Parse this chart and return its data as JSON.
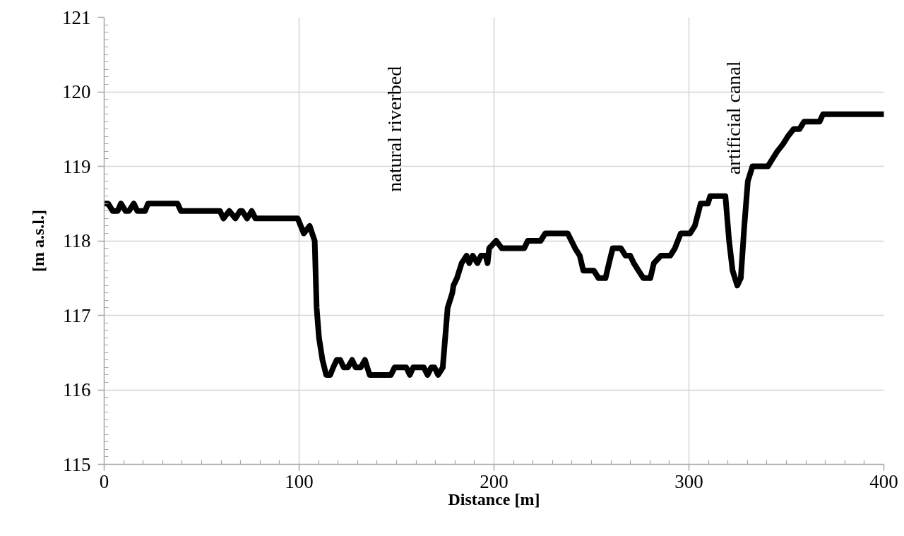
{
  "chart_data": {
    "type": "line",
    "xlabel": "Distance [m]",
    "ylabel": "[m a.s.l.]",
    "x": [
      0,
      2,
      4.4,
      6.9,
      8.6,
      11,
      12.7,
      15.2,
      17,
      21,
      22.5,
      37.6,
      39.4,
      59.4,
      61.2,
      64.2,
      67.3,
      69.7,
      70.8,
      73.3,
      75.7,
      77.6,
      99.3,
      102.4,
      105.4,
      108,
      109,
      110.2,
      112,
      113.9,
      116,
      117.5,
      119.3,
      121.1,
      122.9,
      125,
      127.2,
      129,
      131.6,
      133.8,
      135,
      136.2,
      147.1,
      149,
      155,
      156.8,
      158.5,
      164,
      165.9,
      167.8,
      169.5,
      171.3,
      173.7,
      176.2,
      178.6,
      179.2,
      181,
      183.4,
      185.9,
      187.3,
      189.1,
      191.5,
      193.3,
      195.7,
      196.7,
      197.5,
      201.1,
      204,
      215.5,
      217.3,
      223.9,
      226.3,
      237.8,
      241.6,
      244,
      245.8,
      251.2,
      253.6,
      257.2,
      259,
      260.9,
      265.1,
      267.5,
      269.9,
      271.7,
      274.1,
      276.6,
      280.2,
      282,
      285.6,
      290.4,
      292.8,
      295.8,
      300.6,
      303,
      306,
      309.7,
      310.9,
      318.7,
      320.6,
      322.4,
      324.8,
      326.6,
      328.4,
      330.2,
      332.6,
      340.5,
      342.9,
      345.3,
      348.3,
      350.7,
      353.7,
      356.7,
      359.1,
      367,
      368.8,
      400
    ],
    "series": [
      {
        "color": "#000000",
        "values": [
          118.5,
          118.5,
          118.4,
          118.4,
          118.5,
          118.4,
          118.4,
          118.5,
          118.4,
          118.4,
          118.5,
          118.5,
          118.4,
          118.4,
          118.3,
          118.4,
          118.3,
          118.4,
          118.4,
          118.3,
          118.4,
          118.3,
          118.3,
          118.1,
          118.2,
          118.0,
          117.1,
          116.7,
          116.4,
          116.2,
          116.2,
          116.3,
          116.4,
          116.4,
          116.3,
          116.3,
          116.4,
          116.3,
          116.3,
          116.4,
          116.3,
          116.2,
          116.2,
          116.3,
          116.3,
          116.2,
          116.3,
          116.3,
          116.2,
          116.3,
          116.3,
          116.2,
          116.3,
          117.1,
          117.3,
          117.4,
          117.5,
          117.7,
          117.8,
          117.7,
          117.8,
          117.7,
          117.8,
          117.8,
          117.7,
          117.9,
          118.0,
          117.9,
          117.9,
          118.0,
          118.0,
          118.1,
          118.1,
          117.9,
          117.8,
          117.6,
          117.6,
          117.5,
          117.5,
          117.7,
          117.9,
          117.9,
          117.8,
          117.8,
          117.7,
          117.6,
          117.5,
          117.5,
          117.7,
          117.8,
          117.8,
          117.9,
          118.1,
          118.1,
          118.2,
          118.5,
          118.5,
          118.6,
          118.6,
          118.0,
          117.6,
          117.4,
          117.5,
          118.2,
          118.8,
          119.0,
          119.0,
          119.1,
          119.2,
          119.3,
          119.4,
          119.5,
          119.5,
          119.6,
          119.6,
          119.7,
          119.7
        ]
      }
    ],
    "xlim": [
      0,
      400
    ],
    "ylim": [
      115,
      121
    ],
    "xticks": [
      0,
      100,
      200,
      300,
      400
    ],
    "yticks": [
      115,
      116,
      117,
      118,
      119,
      120,
      121
    ],
    "grid": true,
    "line_style": "solid",
    "annotations": [
      "natural riverbed",
      "artificial canal"
    ]
  }
}
